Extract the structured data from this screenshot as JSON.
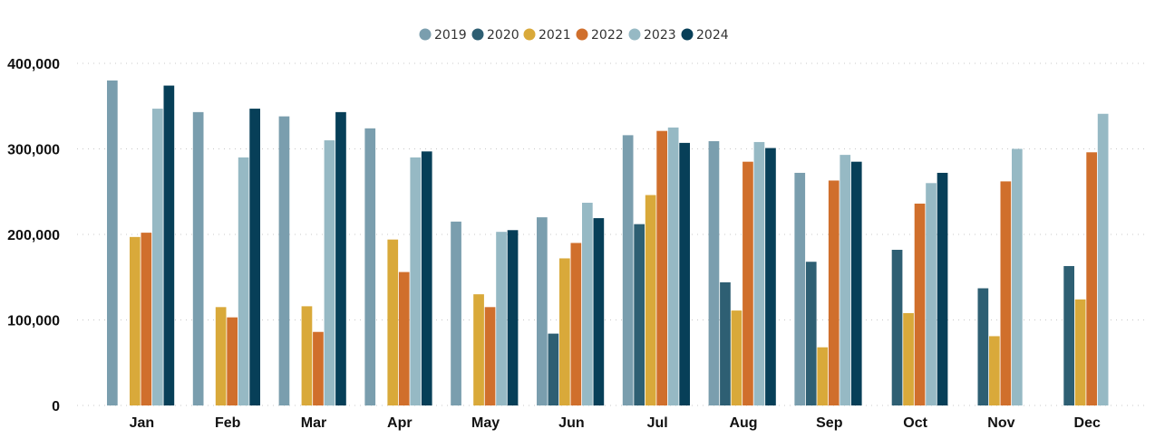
{
  "chart_data": {
    "type": "bar",
    "title": "",
    "xlabel": "",
    "ylabel": "",
    "categories": [
      "Jan",
      "Feb",
      "Mar",
      "Apr",
      "May",
      "Jun",
      "Jul",
      "Aug",
      "Sep",
      "Oct",
      "Nov",
      "Dec"
    ],
    "ylim": [
      0,
      400000
    ],
    "yticks": [
      0,
      100000,
      200000,
      300000,
      400000
    ],
    "ytick_labels": [
      "0",
      "100,000",
      "200,000",
      "300,000",
      "400,000"
    ],
    "grid": true,
    "legend_position": "top-center",
    "series": [
      {
        "name": "2019",
        "color": "#7a9eae",
        "values": [
          380000,
          343000,
          338000,
          324000,
          215000,
          220000,
          316000,
          309000,
          272000,
          null,
          null,
          null
        ]
      },
      {
        "name": "2020",
        "color": "#2e5f73",
        "values": [
          null,
          null,
          null,
          null,
          null,
          84000,
          212000,
          144000,
          168000,
          182000,
          137000,
          163000
        ]
      },
      {
        "name": "2021",
        "color": "#d9a93a",
        "values": [
          197000,
          115000,
          116000,
          194000,
          130000,
          172000,
          246000,
          111000,
          68000,
          108000,
          81000,
          124000
        ]
      },
      {
        "name": "2022",
        "color": "#d06f2c",
        "values": [
          202000,
          103000,
          86000,
          156000,
          115000,
          190000,
          321000,
          285000,
          263000,
          236000,
          262000,
          296000
        ]
      },
      {
        "name": "2023",
        "color": "#96b9c4",
        "values": [
          347000,
          290000,
          310000,
          290000,
          203000,
          237000,
          325000,
          308000,
          293000,
          260000,
          300000,
          341000
        ]
      },
      {
        "name": "2024",
        "color": "#073f58",
        "values": [
          374000,
          347000,
          343000,
          297000,
          205000,
          219000,
          307000,
          301000,
          285000,
          272000,
          null,
          null
        ]
      }
    ]
  }
}
